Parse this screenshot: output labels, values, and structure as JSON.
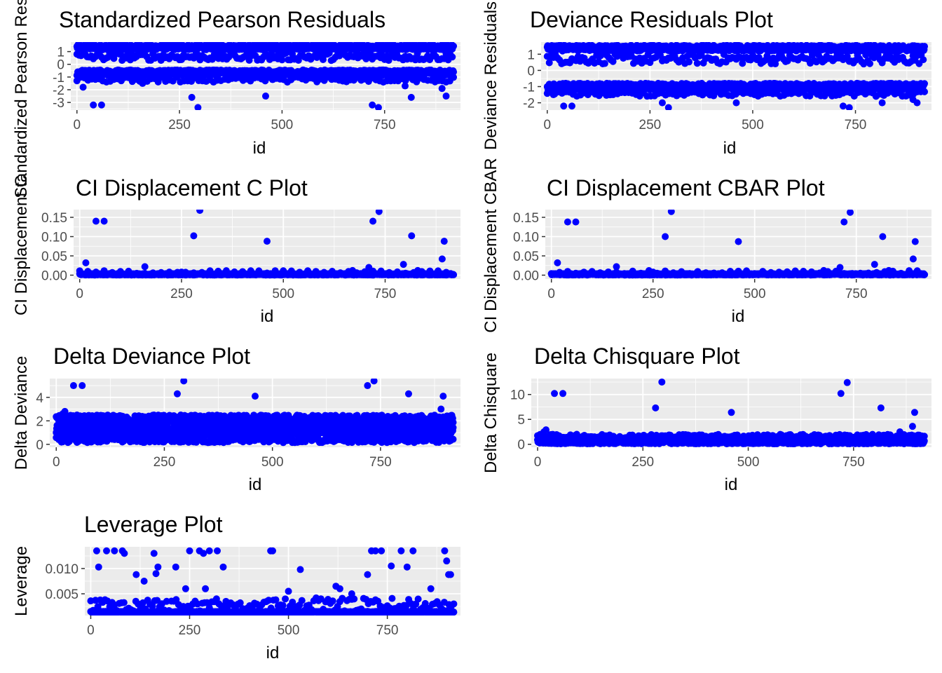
{
  "colors": {
    "panel_background": "#ebebeb",
    "grid_major": "#ffffff",
    "tick_text": "#4d4d4d",
    "point": "#0000ff"
  },
  "chart_data": [
    {
      "type": "scatter",
      "title": "Standardized Pearson Residuals",
      "xlabel": "id",
      "ylabel": "Standardized Pearson Residuals",
      "xlim": [
        -15,
        935
      ],
      "ylim": [
        -3.6,
        1.75
      ],
      "xticks": [
        0,
        250,
        500,
        750
      ],
      "yticks": [
        1,
        0,
        -1,
        -2,
        -3
      ],
      "ytick_labels": [
        "1",
        "0",
        "-1",
        "-2",
        "-3"
      ],
      "grid": true,
      "point_color": "#0000ff",
      "bands": [
        {
          "x_range": [
            0,
            918
          ],
          "values": [
            1.15,
            1.55
          ],
          "step": 1
        },
        {
          "x_range": [
            0,
            918
          ],
          "values": [
            -0.45,
            -0.9
          ],
          "step": 1
        },
        {
          "x_range": [
            0,
            918
          ],
          "values": [
            0.3,
            0.9
          ],
          "step": 5
        },
        {
          "x_range": [
            0,
            918
          ],
          "values": [
            -1.0,
            -1.4
          ],
          "step": 9
        }
      ],
      "points": [
        [
          15,
          -1.8
        ],
        [
          40,
          -3.2
        ],
        [
          60,
          -3.2
        ],
        [
          160,
          -1.5
        ],
        [
          280,
          -2.6
        ],
        [
          295,
          -3.4
        ],
        [
          460,
          -2.5
        ],
        [
          720,
          -3.2
        ],
        [
          735,
          -3.4
        ],
        [
          800,
          -1.7
        ],
        [
          815,
          -2.6
        ],
        [
          890,
          -1.9
        ],
        [
          900,
          -2.5
        ]
      ]
    },
    {
      "type": "scatter",
      "title": "Deviance Residuals Plot",
      "xlabel": "id",
      "ylabel": "Deviance Residuals",
      "xlim": [
        -15,
        935
      ],
      "ylim": [
        -2.45,
        1.75
      ],
      "xticks": [
        0,
        250,
        500,
        750
      ],
      "yticks": [
        1,
        0,
        -1,
        -2
      ],
      "ytick_labels": [
        "1",
        "0",
        "-1",
        "-2"
      ],
      "grid": true,
      "point_color": "#0000ff",
      "bands": [
        {
          "x_range": [
            0,
            918
          ],
          "values": [
            1.2,
            1.55
          ],
          "step": 1
        },
        {
          "x_range": [
            0,
            918
          ],
          "values": [
            -0.8,
            -1.2
          ],
          "step": 1
        },
        {
          "x_range": [
            0,
            918
          ],
          "values": [
            0.4,
            1.0
          ],
          "step": 5
        },
        {
          "x_range": [
            0,
            918
          ],
          "values": [
            -1.3,
            -1.6
          ],
          "step": 9
        }
      ],
      "points": [
        [
          15,
          -1.5
        ],
        [
          40,
          -2.2
        ],
        [
          60,
          -2.2
        ],
        [
          160,
          -1.5
        ],
        [
          280,
          -2.0
        ],
        [
          295,
          -2.3
        ],
        [
          460,
          -2.0
        ],
        [
          720,
          -2.2
        ],
        [
          735,
          -2.3
        ],
        [
          800,
          -1.6
        ],
        [
          815,
          -2.0
        ],
        [
          890,
          -1.8
        ],
        [
          900,
          -2.0
        ]
      ]
    },
    {
      "type": "scatter",
      "title": "CI Displacement C Plot",
      "xlabel": "id",
      "ylabel": "CI Displacement C",
      "xlim": [
        -15,
        935
      ],
      "ylim": [
        -0.01,
        0.17
      ],
      "xticks": [
        0,
        250,
        500,
        750
      ],
      "yticks": [
        0,
        0.05,
        0.1,
        0.15
      ],
      "ytick_labels": [
        "0.00",
        "0.05",
        "0.10",
        "0.15"
      ],
      "grid": true,
      "point_color": "#0000ff",
      "bands": [
        {
          "x_range": [
            0,
            918
          ],
          "values": [
            0.0005,
            0.004
          ],
          "step": 1
        },
        {
          "x_range": [
            0,
            918
          ],
          "values": [
            0.004,
            0.012
          ],
          "step": 20
        }
      ],
      "points": [
        [
          15,
          0.032
        ],
        [
          40,
          0.14
        ],
        [
          60,
          0.14
        ],
        [
          160,
          0.022
        ],
        [
          250,
          0.008
        ],
        [
          280,
          0.102
        ],
        [
          295,
          0.168
        ],
        [
          460,
          0.088
        ],
        [
          620,
          0.01
        ],
        [
          670,
          0.012
        ],
        [
          710,
          0.02
        ],
        [
          720,
          0.14
        ],
        [
          735,
          0.165
        ],
        [
          795,
          0.028
        ],
        [
          815,
          0.102
        ],
        [
          830,
          0.012
        ],
        [
          890,
          0.042
        ],
        [
          895,
          0.088
        ]
      ]
    },
    {
      "type": "scatter",
      "title": "CI Displacement CBAR Plot",
      "xlabel": "id",
      "ylabel": "CI Displacement CBAR",
      "xlim": [
        -15,
        935
      ],
      "ylim": [
        -0.01,
        0.17
      ],
      "xticks": [
        0,
        250,
        500,
        750
      ],
      "yticks": [
        0,
        0.05,
        0.1,
        0.15
      ],
      "ytick_labels": [
        "0.00",
        "0.05",
        "0.10",
        "0.15"
      ],
      "grid": true,
      "point_color": "#0000ff",
      "bands": [
        {
          "x_range": [
            0,
            918
          ],
          "values": [
            0.0005,
            0.004
          ],
          "step": 1
        },
        {
          "x_range": [
            0,
            918
          ],
          "values": [
            0.004,
            0.012
          ],
          "step": 20
        }
      ],
      "points": [
        [
          15,
          0.032
        ],
        [
          40,
          0.138
        ],
        [
          60,
          0.138
        ],
        [
          160,
          0.022
        ],
        [
          250,
          0.008
        ],
        [
          280,
          0.1
        ],
        [
          295,
          0.165
        ],
        [
          460,
          0.087
        ],
        [
          620,
          0.01
        ],
        [
          670,
          0.012
        ],
        [
          710,
          0.02
        ],
        [
          720,
          0.138
        ],
        [
          735,
          0.163
        ],
        [
          795,
          0.028
        ],
        [
          815,
          0.1
        ],
        [
          830,
          0.012
        ],
        [
          890,
          0.042
        ],
        [
          895,
          0.087
        ]
      ]
    },
    {
      "type": "scatter",
      "title": "Delta Deviance Plot",
      "xlabel": "id",
      "ylabel": "Delta Deviance",
      "xlim": [
        -15,
        935
      ],
      "ylim": [
        -0.25,
        5.6
      ],
      "xticks": [
        0,
        250,
        500,
        750
      ],
      "yticks": [
        0,
        2,
        4
      ],
      "ytick_labels": [
        "0",
        "2",
        "4"
      ],
      "grid": true,
      "point_color": "#0000ff",
      "bands": [
        {
          "x_range": [
            0,
            918
          ],
          "values": [
            1.6,
            2.5
          ],
          "step": 1
        },
        {
          "x_range": [
            0,
            918
          ],
          "values": [
            0.7,
            1.5
          ],
          "step": 1
        },
        {
          "x_range": [
            0,
            918
          ],
          "values": [
            0.15,
            0.6
          ],
          "step": 3
        }
      ],
      "points": [
        [
          15,
          2.6
        ],
        [
          20,
          2.8
        ],
        [
          40,
          5.0
        ],
        [
          60,
          5.0
        ],
        [
          280,
          4.3
        ],
        [
          295,
          5.4
        ],
        [
          460,
          4.1
        ],
        [
          720,
          5.0
        ],
        [
          735,
          5.4
        ],
        [
          815,
          4.3
        ],
        [
          890,
          3.0
        ],
        [
          895,
          4.1
        ]
      ]
    },
    {
      "type": "scatter",
      "title": "Delta Chisquare Plot",
      "xlabel": "id",
      "ylabel": "Delta Chisquare",
      "xlim": [
        -15,
        935
      ],
      "ylim": [
        -0.6,
        13.2
      ],
      "xticks": [
        0,
        250,
        500,
        750
      ],
      "yticks": [
        0,
        5,
        10
      ],
      "ytick_labels": [
        "0",
        "5",
        "10"
      ],
      "grid": true,
      "point_color": "#0000ff",
      "bands": [
        {
          "x_range": [
            0,
            918
          ],
          "values": [
            0.1,
            1.0
          ],
          "step": 1
        },
        {
          "x_range": [
            0,
            918
          ],
          "values": [
            1.0,
            2.0
          ],
          "step": 3
        }
      ],
      "points": [
        [
          15,
          2.5
        ],
        [
          20,
          2.9
        ],
        [
          40,
          10.2
        ],
        [
          60,
          10.2
        ],
        [
          280,
          7.3
        ],
        [
          295,
          12.5
        ],
        [
          460,
          6.4
        ],
        [
          720,
          10.2
        ],
        [
          735,
          12.4
        ],
        [
          815,
          7.3
        ],
        [
          860,
          2.5
        ],
        [
          890,
          3.6
        ],
        [
          895,
          6.4
        ]
      ]
    },
    {
      "type": "scatter",
      "title": "Leverage Plot",
      "xlabel": "id",
      "ylabel": "Leverage",
      "xlim": [
        -15,
        935
      ],
      "ylim": [
        0.0007,
        0.0143
      ],
      "xticks": [
        0,
        250,
        500,
        750
      ],
      "yticks": [
        0.005,
        0.01
      ],
      "ytick_labels": [
        "0.005",
        "0.010"
      ],
      "grid": true,
      "point_color": "#0000ff",
      "bands": [
        {
          "x_range": [
            0,
            918
          ],
          "values": [
            0.0013,
            0.0015
          ],
          "step": 1
        },
        {
          "x_range": [
            0,
            918
          ],
          "values": [
            0.0016,
            0.0042
          ],
          "step": 6
        }
      ],
      "points": [
        [
          15,
          0.0135
        ],
        [
          20,
          0.0103
        ],
        [
          40,
          0.0135
        ],
        [
          60,
          0.0135
        ],
        [
          80,
          0.0135
        ],
        [
          85,
          0.013
        ],
        [
          115,
          0.0088
        ],
        [
          135,
          0.0075
        ],
        [
          160,
          0.013
        ],
        [
          165,
          0.009
        ],
        [
          170,
          0.0103
        ],
        [
          215,
          0.0103
        ],
        [
          240,
          0.006
        ],
        [
          250,
          0.0135
        ],
        [
          275,
          0.0135
        ],
        [
          285,
          0.013
        ],
        [
          290,
          0.006
        ],
        [
          300,
          0.0135
        ],
        [
          320,
          0.0135
        ],
        [
          335,
          0.0103
        ],
        [
          455,
          0.0135
        ],
        [
          460,
          0.0135
        ],
        [
          500,
          0.0055
        ],
        [
          530,
          0.0098
        ],
        [
          620,
          0.0065
        ],
        [
          630,
          0.006
        ],
        [
          660,
          0.005
        ],
        [
          700,
          0.0088
        ],
        [
          710,
          0.0135
        ],
        [
          720,
          0.0135
        ],
        [
          735,
          0.0135
        ],
        [
          760,
          0.0105
        ],
        [
          785,
          0.0135
        ],
        [
          800,
          0.0103
        ],
        [
          815,
          0.0135
        ],
        [
          860,
          0.006
        ],
        [
          895,
          0.0135
        ],
        [
          900,
          0.0115
        ],
        [
          905,
          0.0088
        ],
        [
          910,
          0.0088
        ]
      ]
    }
  ]
}
